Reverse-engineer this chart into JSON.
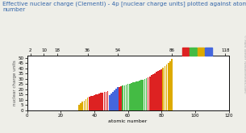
{
  "title": "Effective nuclear charge (Clementi) - 4p [nuclear charge units] plotted against atomic\nnumber",
  "ylabel": "nuclear charge units",
  "xlabel": "atomic number",
  "xlabel2": "atomic number",
  "xlim": [
    0,
    120
  ],
  "ylim": [
    0,
    52
  ],
  "yticks": [
    0,
    5,
    10,
    15,
    20,
    25,
    30,
    35,
    40,
    45,
    50
  ],
  "xticks_top": [
    2,
    10,
    18,
    36,
    54,
    86,
    118
  ],
  "xticks_bottom": [
    0,
    20,
    40,
    60,
    80,
    100,
    120
  ],
  "watermark": "© Mark Winter (webelements.com)",
  "background_color": "#eeeee8",
  "plot_bg": "#ffffff",
  "title_color": "#3366aa",
  "ylabel_color": "#555555",
  "legend_colors": [
    "#dd2222",
    "#44bb44",
    "#ddaa00",
    "#4466dd"
  ],
  "zeff_4p": {
    "31": 5.0,
    "32": 6.78,
    "33": 8.04,
    "34": 9.36,
    "35": 11.0,
    "36": 12.42,
    "37": 13.0,
    "38": 13.5,
    "39": 14.0,
    "40": 14.5,
    "41": 15.0,
    "42": 15.5,
    "43": 16.0,
    "44": 16.5,
    "45": 17.0,
    "46": 17.5,
    "47": 18.0,
    "48": 18.5,
    "49": 14.5,
    "50": 16.0,
    "51": 17.5,
    "52": 19.0,
    "53": 20.5,
    "54": 22.0,
    "55": 22.5,
    "56": 23.0,
    "57": 23.5,
    "58": 24.0,
    "59": 24.5,
    "60": 25.0,
    "61": 25.5,
    "62": 26.0,
    "63": 26.5,
    "64": 27.0,
    "65": 27.5,
    "66": 28.0,
    "67": 28.5,
    "68": 29.0,
    "69": 29.5,
    "70": 30.0,
    "71": 30.5,
    "72": 31.5,
    "73": 32.5,
    "74": 33.5,
    "75": 34.5,
    "76": 35.5,
    "77": 36.5,
    "78": 37.5,
    "79": 38.5,
    "80": 39.5,
    "81": 40.5,
    "82": 42.0,
    "83": 43.5,
    "84": 45.0,
    "85": 47.0,
    "86": 49.2
  },
  "bar_colors": {
    "31": "#ddaa00",
    "32": "#ddaa00",
    "33": "#ddaa00",
    "34": "#ddaa00",
    "35": "#ddaa00",
    "36": "#ddaa00",
    "37": "#dd2222",
    "38": "#dd2222",
    "39": "#dd2222",
    "40": "#dd2222",
    "41": "#dd2222",
    "42": "#dd2222",
    "43": "#dd2222",
    "44": "#dd2222",
    "45": "#dd2222",
    "46": "#dd2222",
    "47": "#dd2222",
    "48": "#dd2222",
    "49": "#4466dd",
    "50": "#4466dd",
    "51": "#4466dd",
    "52": "#4466dd",
    "53": "#4466dd",
    "54": "#4466dd",
    "55": "#dd2222",
    "56": "#dd2222",
    "57": "#44bb44",
    "58": "#44bb44",
    "59": "#44bb44",
    "60": "#44bb44",
    "61": "#44bb44",
    "62": "#44bb44",
    "63": "#44bb44",
    "64": "#44bb44",
    "65": "#44bb44",
    "66": "#44bb44",
    "67": "#44bb44",
    "68": "#44bb44",
    "69": "#44bb44",
    "70": "#44bb44",
    "71": "#44bb44",
    "72": "#dd2222",
    "73": "#dd2222",
    "74": "#dd2222",
    "75": "#dd2222",
    "76": "#dd2222",
    "77": "#dd2222",
    "78": "#dd2222",
    "79": "#dd2222",
    "80": "#dd2222",
    "81": "#ddaa00",
    "82": "#ddaa00",
    "83": "#ddaa00",
    "84": "#ddaa00",
    "85": "#ddaa00",
    "86": "#ddaa00"
  }
}
